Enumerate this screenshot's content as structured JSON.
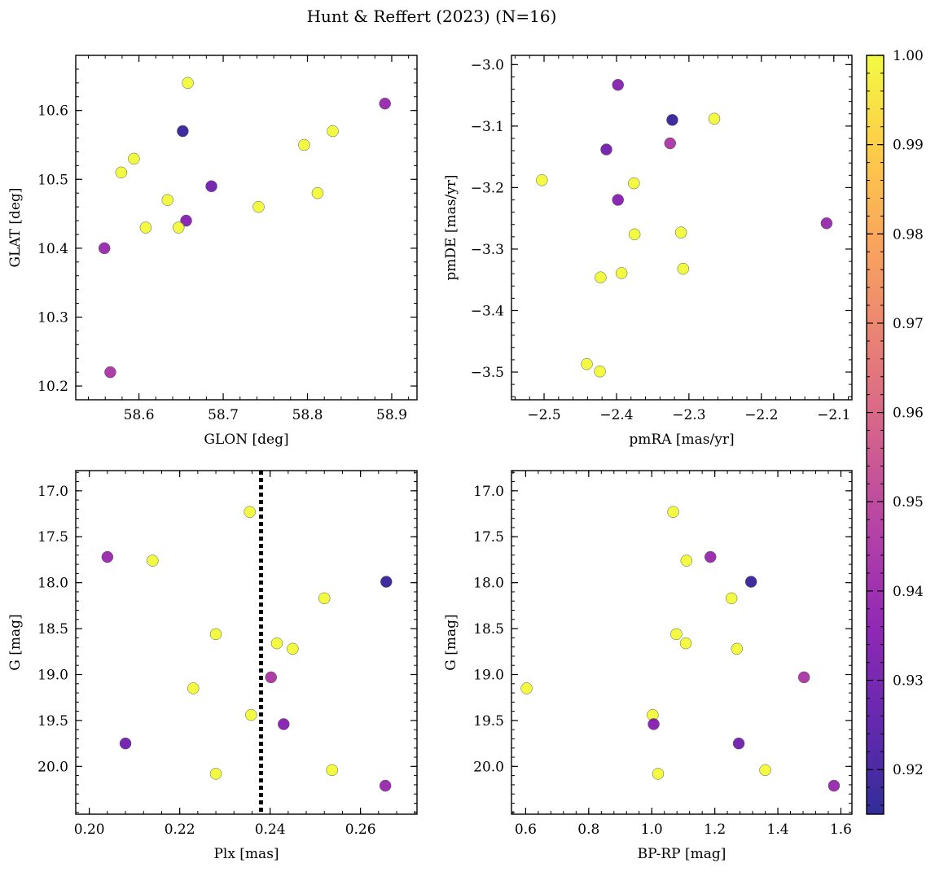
{
  "title": "Hunt & Reffert (2023) (N=16)",
  "colorbar": {
    "cmap": "plasma",
    "range": [
      0.915,
      1.0
    ],
    "ticks": [
      "0.92",
      "0.93",
      "0.94",
      "0.95",
      "0.96",
      "0.97",
      "0.98",
      "0.99",
      "1.00"
    ]
  },
  "chart_data": [
    {
      "type": "scatter",
      "xlabel": "GLON [deg]",
      "ylabel": "GLAT [deg]",
      "xlim": [
        58.525,
        58.93
      ],
      "ylim": [
        10.18,
        10.68
      ],
      "xticks": [
        "58.6",
        "58.7",
        "58.8",
        "58.9"
      ],
      "yticks": [
        "10.2",
        "10.3",
        "10.4",
        "10.5",
        "10.6"
      ],
      "points": [
        {
          "x": 58.658,
          "y": 10.64,
          "c": 1.0
        },
        {
          "x": 58.652,
          "y": 10.57,
          "c": 0.918
        },
        {
          "x": 58.892,
          "y": 10.61,
          "c": 0.94
        },
        {
          "x": 58.83,
          "y": 10.57,
          "c": 1.0
        },
        {
          "x": 58.796,
          "y": 10.55,
          "c": 1.0
        },
        {
          "x": 58.594,
          "y": 10.53,
          "c": 1.0
        },
        {
          "x": 58.579,
          "y": 10.51,
          "c": 1.0
        },
        {
          "x": 58.686,
          "y": 10.49,
          "c": 0.93
        },
        {
          "x": 58.812,
          "y": 10.48,
          "c": 1.0
        },
        {
          "x": 58.634,
          "y": 10.47,
          "c": 1.0
        },
        {
          "x": 58.742,
          "y": 10.46,
          "c": 1.0
        },
        {
          "x": 58.656,
          "y": 10.44,
          "c": 0.935
        },
        {
          "x": 58.608,
          "y": 10.43,
          "c": 1.0
        },
        {
          "x": 58.647,
          "y": 10.43,
          "c": 1.0
        },
        {
          "x": 58.559,
          "y": 10.4,
          "c": 0.94
        },
        {
          "x": 58.566,
          "y": 10.22,
          "c": 0.945
        }
      ]
    },
    {
      "type": "scatter",
      "xlabel": "pmRA [mas/yr]",
      "ylabel": "pmDE [mas/yr]",
      "xlim": [
        -2.545,
        -2.075
      ],
      "ylim": [
        -3.545,
        -2.985
      ],
      "xticks": [
        "−2.5",
        "−2.4",
        "−2.3",
        "−2.2",
        "−2.1"
      ],
      "yticks": [
        "−3.0",
        "−3.1",
        "−3.2",
        "−3.3",
        "−3.4",
        "−3.5"
      ],
      "points": [
        {
          "x": -2.398,
          "y": -3.033,
          "c": 0.935
        },
        {
          "x": -2.323,
          "y": -3.09,
          "c": 0.918
        },
        {
          "x": -2.265,
          "y": -3.088,
          "c": 1.0
        },
        {
          "x": -2.326,
          "y": -3.128,
          "c": 0.945
        },
        {
          "x": -2.414,
          "y": -3.138,
          "c": 0.93
        },
        {
          "x": -2.503,
          "y": -3.188,
          "c": 1.0
        },
        {
          "x": -2.376,
          "y": -3.193,
          "c": 1.0
        },
        {
          "x": -2.398,
          "y": -3.22,
          "c": 0.935
        },
        {
          "x": -2.11,
          "y": -3.258,
          "c": 0.94
        },
        {
          "x": -2.311,
          "y": -3.273,
          "c": 1.0
        },
        {
          "x": -2.375,
          "y": -3.276,
          "c": 1.0
        },
        {
          "x": -2.308,
          "y": -3.332,
          "c": 1.0
        },
        {
          "x": -2.393,
          "y": -3.339,
          "c": 1.0
        },
        {
          "x": -2.422,
          "y": -3.346,
          "c": 1.0
        },
        {
          "x": -2.441,
          "y": -3.487,
          "c": 1.0
        },
        {
          "x": -2.423,
          "y": -3.499,
          "c": 1.0
        }
      ]
    },
    {
      "type": "scatter",
      "xlabel": "Plx [mas]",
      "ylabel": "G [mag]",
      "xlim": [
        0.197,
        0.2725
      ],
      "ylim": [
        20.52,
        16.78
      ],
      "xticks": [
        "0.20",
        "0.22",
        "0.24",
        "0.26"
      ],
      "yticks": [
        "17.0",
        "17.5",
        "18.0",
        "18.5",
        "19.0",
        "19.5",
        "20.0"
      ],
      "vline": {
        "x": 0.238
      },
      "points": [
        {
          "x": 0.2355,
          "y": 17.23,
          "c": 1.0
        },
        {
          "x": 0.204,
          "y": 17.72,
          "c": 0.94
        },
        {
          "x": 0.214,
          "y": 17.76,
          "c": 1.0
        },
        {
          "x": 0.2657,
          "y": 17.99,
          "c": 0.918
        },
        {
          "x": 0.252,
          "y": 18.17,
          "c": 1.0
        },
        {
          "x": 0.228,
          "y": 18.56,
          "c": 1.0
        },
        {
          "x": 0.2415,
          "y": 18.66,
          "c": 1.0
        },
        {
          "x": 0.245,
          "y": 18.72,
          "c": 1.0
        },
        {
          "x": 0.2402,
          "y": 19.03,
          "c": 0.945
        },
        {
          "x": 0.223,
          "y": 19.15,
          "c": 1.0
        },
        {
          "x": 0.2358,
          "y": 19.44,
          "c": 1.0
        },
        {
          "x": 0.243,
          "y": 19.54,
          "c": 0.935
        },
        {
          "x": 0.208,
          "y": 19.75,
          "c": 0.93
        },
        {
          "x": 0.2537,
          "y": 20.04,
          "c": 1.0
        },
        {
          "x": 0.228,
          "y": 20.08,
          "c": 1.0
        },
        {
          "x": 0.2655,
          "y": 20.21,
          "c": 0.94
        }
      ]
    },
    {
      "type": "scatter",
      "xlabel": "BP-RP [mag]",
      "ylabel": "G [mag]",
      "xlim": [
        0.555,
        1.635
      ],
      "ylim": [
        20.52,
        16.78
      ],
      "xticks": [
        "0.6",
        "0.8",
        "1.0",
        "1.2",
        "1.4",
        "1.6"
      ],
      "yticks": [
        "17.0",
        "17.5",
        "18.0",
        "18.5",
        "19.0",
        "19.5",
        "20.0"
      ],
      "points": [
        {
          "x": 1.068,
          "y": 17.23,
          "c": 1.0
        },
        {
          "x": 1.186,
          "y": 17.72,
          "c": 0.94
        },
        {
          "x": 1.11,
          "y": 17.76,
          "c": 1.0
        },
        {
          "x": 1.315,
          "y": 17.99,
          "c": 0.918
        },
        {
          "x": 1.253,
          "y": 18.17,
          "c": 1.0
        },
        {
          "x": 1.078,
          "y": 18.56,
          "c": 1.0
        },
        {
          "x": 1.108,
          "y": 18.66,
          "c": 1.0
        },
        {
          "x": 1.27,
          "y": 18.72,
          "c": 1.0
        },
        {
          "x": 1.483,
          "y": 19.03,
          "c": 0.945
        },
        {
          "x": 0.603,
          "y": 19.15,
          "c": 1.0
        },
        {
          "x": 1.003,
          "y": 19.44,
          "c": 1.0
        },
        {
          "x": 1.006,
          "y": 19.54,
          "c": 0.935
        },
        {
          "x": 1.276,
          "y": 19.75,
          "c": 0.93
        },
        {
          "x": 1.36,
          "y": 20.04,
          "c": 1.0
        },
        {
          "x": 1.02,
          "y": 20.08,
          "c": 1.0
        },
        {
          "x": 1.578,
          "y": 20.21,
          "c": 0.94
        }
      ]
    }
  ]
}
